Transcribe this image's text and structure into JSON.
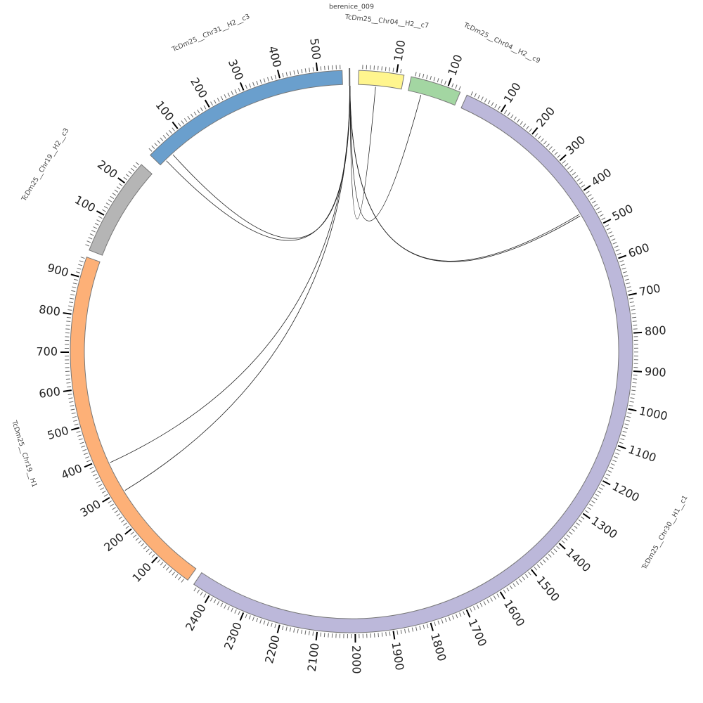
{
  "chart_data": {
    "type": "chord",
    "ticks": {
      "major": 100,
      "minor": 10
    },
    "segments": [
      {
        "name": "TcDm25__Chr31__H2__c3",
        "length": 565,
        "color": "#6a9fcd"
      },
      {
        "name": "berenice_009",
        "length": 5,
        "color": "#888888"
      },
      {
        "name": "TcDm25__Chr04__H2__c7",
        "length": 120,
        "color": "#fff58e"
      },
      {
        "name": "TcDm25__Chr04__H2__c9",
        "length": 135,
        "color": "#a3d6a2"
      },
      {
        "name": "TcDm25__Chr30__H1__c1",
        "length": 2450,
        "color": "#bcb8da"
      },
      {
        "name": "TcDm25__Chr19__H1",
        "length": 955,
        "color": "#fdb077"
      },
      {
        "name": "TcDm25__Chr19__H2__c3",
        "length": 265,
        "color": "#b5b5b5"
      }
    ],
    "links": [
      {
        "from": [
          "berenice_009",
          1
        ],
        "to": [
          "TcDm25__Chr31__H2__c3",
          20
        ]
      },
      {
        "from": [
          "berenice_009",
          2
        ],
        "to": [
          "TcDm25__Chr31__H2__c3",
          45
        ]
      },
      {
        "from": [
          "berenice_009",
          1
        ],
        "to": [
          "TcDm25__Chr19__H1",
          383
        ]
      },
      {
        "from": [
          "berenice_009",
          2
        ],
        "to": [
          "TcDm25__Chr19__H1",
          295
        ]
      },
      {
        "from": [
          "berenice_009",
          3
        ],
        "to": [
          "TcDm25__Chr30__H1__c1",
          448
        ]
      },
      {
        "from": [
          "berenice_009",
          4
        ],
        "to": [
          "TcDm25__Chr30__H1__c1",
          453
        ]
      },
      {
        "from": [
          "berenice_009",
          3
        ],
        "to": [
          "TcDm25__Chr04__H2__c7",
          48
        ]
      },
      {
        "from": [
          "berenice_009",
          4
        ],
        "to": [
          "TcDm25__Chr04__H2__c9",
          37
        ]
      }
    ]
  }
}
